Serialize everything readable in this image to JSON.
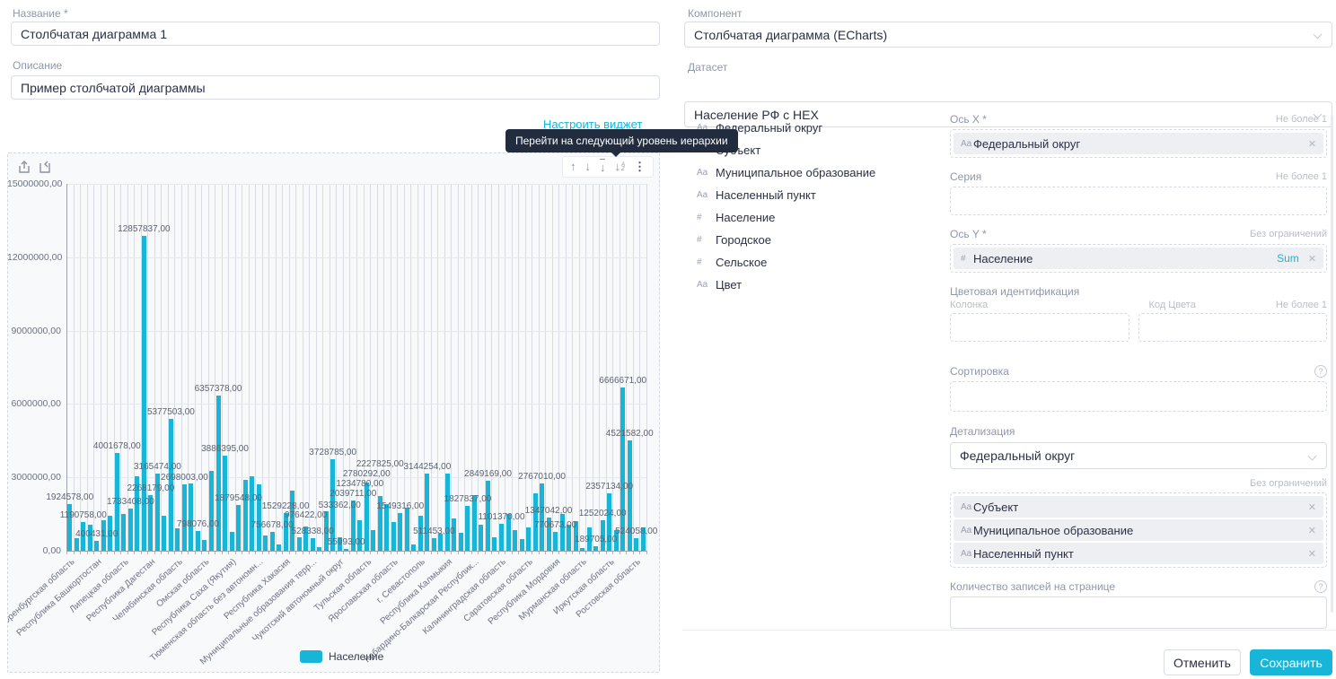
{
  "form": {
    "name_label": "Название *",
    "name_value": "Столбчатая диаграмма 1",
    "description_label": "Описание",
    "description_value": "Пример столбчатой диаграммы",
    "component_label": "Компонент",
    "component_value": "Столбчатая диаграмма (ECharts)",
    "dataset_label": "Датасет",
    "dataset_value": "Население РФ с HEX"
  },
  "widget": {
    "configure_link": "Настроить виджет",
    "tooltip": "Перейти на следующий уровень иерархии"
  },
  "dataset_fields": [
    {
      "prefix": "Aa",
      "label": "Федеральный округ"
    },
    {
      "prefix": "Aa",
      "label": "Субъект"
    },
    {
      "prefix": "Aa",
      "label": "Муниципальное образование"
    },
    {
      "prefix": "Aa",
      "label": "Населенный пункт"
    },
    {
      "prefix": "#",
      "label": "Население"
    },
    {
      "prefix": "#",
      "label": "Городское"
    },
    {
      "prefix": "#",
      "label": "Сельское"
    },
    {
      "prefix": "Aa",
      "label": "Цвет"
    }
  ],
  "config": {
    "x_axis": {
      "label": "Ось X *",
      "limit": "Не более 1",
      "chips": [
        {
          "prefix": "Aa",
          "label": "Федеральный округ"
        }
      ]
    },
    "series": {
      "label": "Серия",
      "limit": "Не более 1"
    },
    "y_axis": {
      "label": "Ось Y *",
      "limit": "Без ограничений",
      "chips": [
        {
          "prefix": "#",
          "label": "Население",
          "agg": "Sum"
        }
      ]
    },
    "color_ident": {
      "label": "Цветовая идентификация",
      "column_label": "Колонка",
      "code_label": "Код Цвета",
      "limit": "Не более 1"
    },
    "sorting": {
      "label": "Сортировка"
    },
    "detail": {
      "label": "Детализация",
      "value": "Федеральный округ",
      "limit": "Без ограничений",
      "chips": [
        {
          "prefix": "Aa",
          "label": "Субъект"
        },
        {
          "prefix": "Aa",
          "label": "Муниципальное образование"
        },
        {
          "prefix": "Aa",
          "label": "Населенный пункт"
        }
      ]
    },
    "page_size": {
      "label": "Количество записей на странице"
    }
  },
  "actions": {
    "cancel": "Отменить",
    "save": "Сохранить"
  },
  "colors": {
    "accent": "#17b5d8",
    "bar": "#17b5d8",
    "tooltip_bg": "#212c3f"
  },
  "chart_data": {
    "type": "bar",
    "title": "",
    "legend": [
      "Население"
    ],
    "xlabel": "",
    "ylabel": "",
    "ylim": [
      0,
      15000000
    ],
    "grid": true,
    "legend_position": "bottom",
    "y_ticks": [
      "15000000,00",
      "12000000,00",
      "9000000,00",
      "6000000,00",
      "3000000,00",
      "0,00"
    ],
    "x_tick_interval": 4,
    "x_tick_labels": [
      "Оренбургская область",
      "Республика Башкортостан",
      "Липецкая область",
      "Республика Дагестан",
      "Челябинская область",
      "Омская область",
      "Республика Саха (Якутия)",
      "Тюменская область без автономн...",
      "Республика Хакасия",
      "Муниципальные образования терр...",
      "Чукотский автономный округ",
      "Тульская область",
      "Ярославская область",
      "г. Севастополь",
      "Республика Калмыкия",
      "Кабардино-Балкарская Республик...",
      "Калининградская область",
      "Саратовская область",
      "Республика Мордовия",
      "Мурманская область",
      "Иркутская область",
      "Ростовская область"
    ],
    "bar_color": "#17b5d8",
    "bars": [
      {
        "v": 1924578,
        "l": 1
      },
      {
        "v": 520000
      },
      {
        "v": 1190758,
        "l": 1
      },
      {
        "v": 1080000
      },
      {
        "v": 400431,
        "l": 1
      },
      {
        "v": 1250000
      },
      {
        "v": 1430000
      },
      {
        "v": 4001678,
        "l": 1
      },
      {
        "v": 1500000
      },
      {
        "v": 1733408,
        "l": 1
      },
      {
        "v": 3050000
      },
      {
        "v": 12857837,
        "l": 1
      },
      {
        "v": 2268179,
        "l": 1
      },
      {
        "v": 3165474,
        "l": 1
      },
      {
        "v": 1430000
      },
      {
        "v": 5377503,
        "l": 1
      },
      {
        "v": 930000
      },
      {
        "v": 2698003,
        "l": 1
      },
      {
        "v": 2760000
      },
      {
        "v": 798076,
        "l": 1
      },
      {
        "v": 430000
      },
      {
        "v": 3280000
      },
      {
        "v": 6357378,
        "l": 1
      },
      {
        "v": 3886395,
        "l": 1
      },
      {
        "v": 760000
      },
      {
        "v": 1879548,
        "l": 1
      },
      {
        "v": 2880000
      },
      {
        "v": 3060000
      },
      {
        "v": 2700000
      },
      {
        "v": 620000
      },
      {
        "v": 756678,
        "l": 1
      },
      {
        "v": 240000
      },
      {
        "v": 1529228,
        "l": 1
      },
      {
        "v": 2460000
      },
      {
        "v": 560000
      },
      {
        "v": 976422,
        "l": 1
      },
      {
        "v": 528338,
        "l": 1
      },
      {
        "v": 150000
      },
      {
        "v": 1620000
      },
      {
        "v": 3728785,
        "l": 1
      },
      {
        "v": 533362,
        "l": 1
      },
      {
        "v": 55993,
        "l": 1
      },
      {
        "v": 2039711,
        "l": 1
      },
      {
        "v": 1234780,
        "l": 1
      },
      {
        "v": 2780292,
        "l": 1
      },
      {
        "v": 860000
      },
      {
        "v": 2227825,
        "l": 1
      },
      {
        "v": 1910000
      },
      {
        "v": 1160000
      },
      {
        "v": 1549316,
        "l": 1
      },
      {
        "v": 1760000
      },
      {
        "v": 260000
      },
      {
        "v": 1440000
      },
      {
        "v": 3144254,
        "l": 1
      },
      {
        "v": 511453,
        "l": 1
      },
      {
        "v": 710000
      },
      {
        "v": 3160000
      },
      {
        "v": 1310000
      },
      {
        "v": 730000
      },
      {
        "v": 1827837,
        "l": 1
      },
      {
        "v": 2260000
      },
      {
        "v": 1060000
      },
      {
        "v": 2849169,
        "l": 1
      },
      {
        "v": 560000
      },
      {
        "v": 1101370,
        "l": 1
      },
      {
        "v": 1510000
      },
      {
        "v": 830000
      },
      {
        "v": 470000
      },
      {
        "v": 960000
      },
      {
        "v": 2360000
      },
      {
        "v": 2767010,
        "l": 1
      },
      {
        "v": 1347042,
        "l": 1
      },
      {
        "v": 770673,
        "l": 1
      },
      {
        "v": 1510000
      },
      {
        "v": 1060000
      },
      {
        "v": 1210000
      },
      {
        "v": 120000
      },
      {
        "v": 970000
      },
      {
        "v": 189705,
        "l": 1
      },
      {
        "v": 1252024,
        "l": 1
      },
      {
        "v": 2357134,
        "l": 1
      },
      {
        "v": 850000
      },
      {
        "v": 6666671,
        "l": 1
      },
      {
        "v": 4521582,
        "l": 1
      },
      {
        "v": 524058,
        "l": 1
      },
      {
        "v": 960000
      }
    ]
  }
}
